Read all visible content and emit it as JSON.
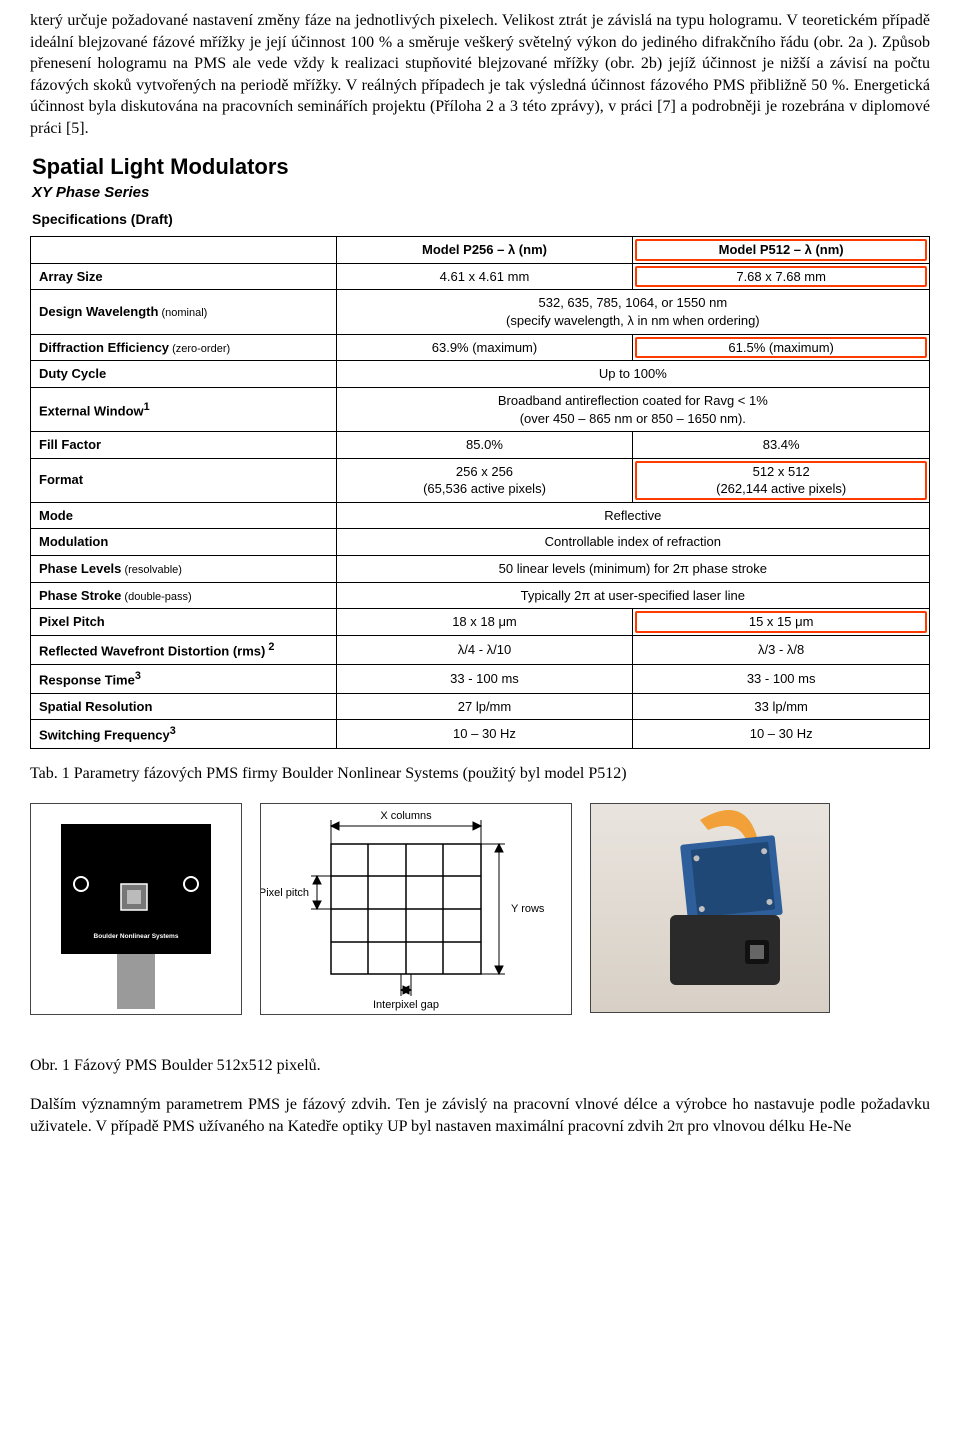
{
  "paragraphs": {
    "p1": "který určuje požadované nastavení změny fáze na jednotlivých pixelech. Velikost ztrát je závislá na typu hologramu. V teoretickém případě ideální blejzované fázové mřížky je její účinnost 100 % a směruje veškerý světelný výkon do jediného difrakčního řádu (obr. 2a ). Způsob přenesení hologramu na PMS ale vede vždy k realizaci stupňovité blejzované mřížky (obr. 2b) jejíž účinnost je nižší a závisí na počtu fázových skoků vytvořených na periodě mřížky. V reálných případech je tak výsledná účinnost fázového PMS přibližně 50 %. Energetická účinnost byla diskutována na pracovních seminářích projektu (Příloha 2 a 3 této zprávy), v práci [7] a podrobněji je rozebrána v diplomové práci [5].",
    "p2": "Dalším významným parametrem  PMS je fázový zdvih. Ten je závislý na pracovní vlnové délce a výrobce ho nastavuje podle požadavku uživatele. V případě PMS užívaného na Katedře optiky  UP byl nastaven maximální pracovní zdvih 2π pro vlnovou délku He-Ne"
  },
  "spec": {
    "title": "Spatial Light Modulators",
    "subtitle": "XY Phase Series",
    "draft": "Specifications (Draft)",
    "headers": {
      "blank": "",
      "c1": "Model P256 – λ (nm)",
      "c2": "Model P512 – λ (nm)"
    },
    "rows": [
      {
        "label": "Array Size",
        "note": "",
        "v1": "4.61 x 4.61 mm",
        "v2": "7.68 x 7.68 mm",
        "span": false,
        "hl2": true
      },
      {
        "label": "Design Wavelength",
        "note": " (nominal)",
        "merged": "532, 635, 785, 1064, or 1550 nm\n(specify wavelength, λ in nm when ordering)",
        "span": true
      },
      {
        "label": "Diffraction Efficiency",
        "note": " (zero-order)",
        "v1": "63.9% (maximum)",
        "v2": "61.5% (maximum)",
        "span": false,
        "hl2": true
      },
      {
        "label": "Duty Cycle",
        "note": "",
        "merged": "Up to 100%",
        "span": true
      },
      {
        "label": "External Window",
        "sup": "1",
        "note": "",
        "merged": "Broadband antireflection coated for Ravg < 1%\n(over 450 – 865 nm or 850 – 1650 nm).",
        "span": true
      },
      {
        "label": "Fill Factor",
        "note": "",
        "v1": "85.0%",
        "v2": "83.4%",
        "span": false
      },
      {
        "label": "Format",
        "note": "",
        "v1": "256 x 256\n(65,536 active pixels)",
        "v2": "512 x 512\n(262,144 active pixels)",
        "span": false,
        "hl2": true
      },
      {
        "label": "Mode",
        "note": "",
        "merged": "Reflective",
        "span": true
      },
      {
        "label": "Modulation",
        "note": "",
        "merged": "Controllable index of refraction",
        "span": true
      },
      {
        "label": "Phase Levels",
        "note": " (resolvable)",
        "merged": "50 linear levels (minimum) for 2π phase stroke",
        "span": true
      },
      {
        "label": "Phase Stroke",
        "note": " (double-pass)",
        "merged": "Typically 2π at user-specified laser line",
        "span": true
      },
      {
        "label": "Pixel Pitch",
        "note": "",
        "v1": "18 x 18 μm",
        "v2": "15 x 15 μm",
        "span": false,
        "hl2": true
      },
      {
        "label": "Reflected Wavefront Distortion (rms)",
        "sup": " 2",
        "note": "",
        "v1": "λ/4 - λ/10",
        "v2": "λ/3 - λ/8",
        "span": false
      },
      {
        "label": "Response Time",
        "sup": "3",
        "note": "",
        "v1": "33 - 100 ms",
        "v2": "33 - 100 ms",
        "span": false
      },
      {
        "label": "Spatial Resolution",
        "note": "",
        "v1": "27 lp/mm",
        "v2": "33 lp/mm",
        "span": false
      },
      {
        "label": "Switching Frequency",
        "sup": "3",
        "note": "",
        "v1": "10 – 30 Hz",
        "v2": "10 – 30 Hz",
        "span": false
      }
    ],
    "highlight_color": "#ff3b00"
  },
  "captions": {
    "tab1": "Tab. 1  Parametry fázových PMS firmy Boulder Nonlinear Systems (použitý byl model P512)",
    "obr1": "Obr. 1  Fázový PMS Boulder 512x512 pixelů."
  },
  "diagram": {
    "labels": {
      "xcols": "X columns",
      "yrows": "Y rows",
      "pitch": "Pixel pitch",
      "gap": "Interpixel gap",
      "brand": "Boulder Nonlinear Systems"
    },
    "bg_black": "#000000",
    "grid_line": "#000000"
  },
  "photo": {
    "body_color": "#2a2a2a",
    "pcb_color": "#2f5f9a",
    "flex_color": "#f2a13a",
    "lens_color": "#111111"
  }
}
